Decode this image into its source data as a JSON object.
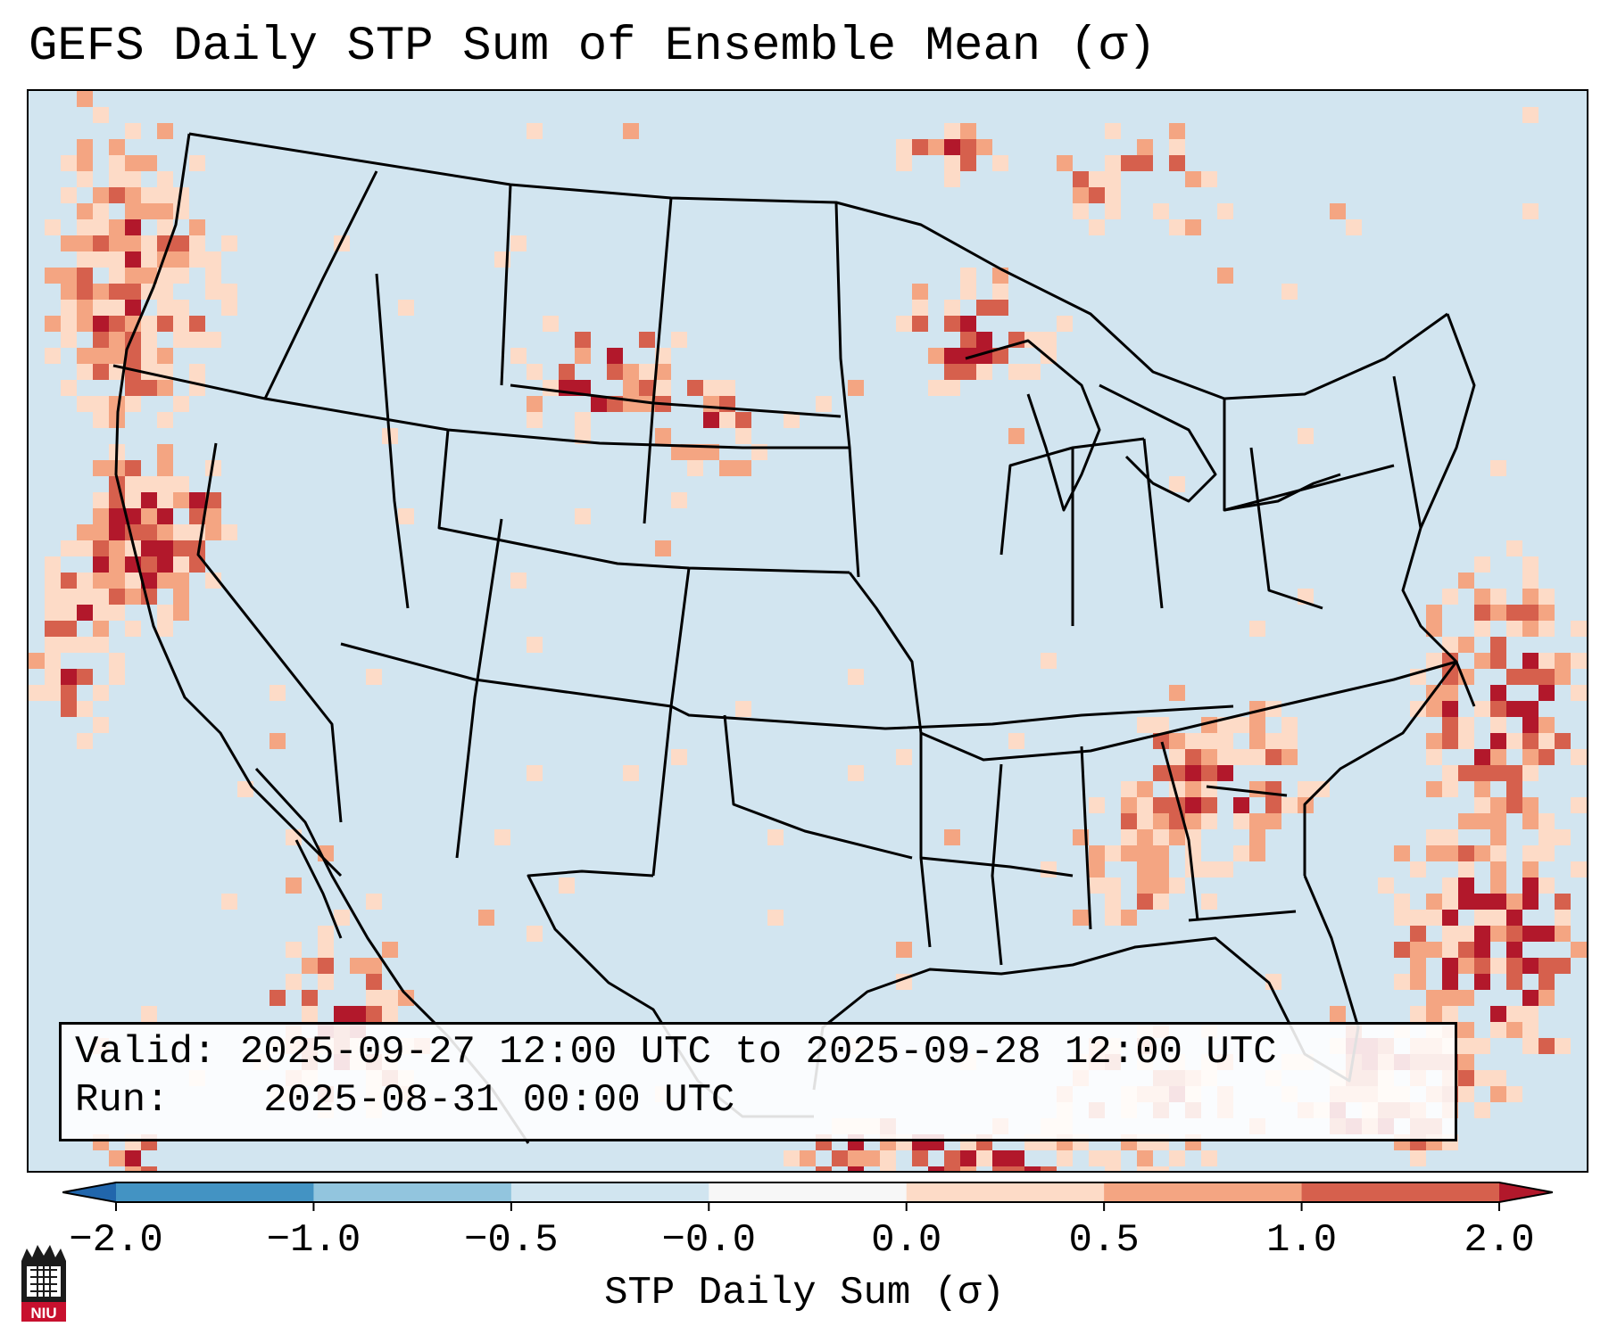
{
  "title": "GEFS Daily STP Sum of Ensemble Mean (σ)",
  "legend": {
    "valid_label": "Valid:",
    "valid_value": "2025-09-27 12:00 UTC to 2025-09-28 12:00 UTC",
    "run_label": "Run:",
    "run_value": "2025-08-31 00:00 UTC"
  },
  "colorbar": {
    "label": "STP Daily Sum (σ)",
    "ticks": [
      "−2.0",
      "−1.0",
      "−0.5",
      "−0.0",
      "0.0",
      "0.5",
      "1.0",
      "2.0"
    ],
    "bins": [
      {
        "from": "−2.0",
        "to": "−1.0",
        "color": "#4393c3"
      },
      {
        "from": "−1.0",
        "to": "−0.5",
        "color": "#92c5de"
      },
      {
        "from": "−0.5",
        "to": "−0.0",
        "color": "#d1e5f0"
      },
      {
        "from": "−0.0",
        "to": "0.0",
        "color": "#f7f7f7"
      },
      {
        "from": "0.0",
        "to": "0.5",
        "color": "#fddbc7"
      },
      {
        "from": "0.5",
        "to": "1.0",
        "color": "#f4a582"
      },
      {
        "from": "1.0",
        "to": "2.0",
        "color": "#d6604d"
      }
    ],
    "under_color": "#2166ac",
    "over_color": "#b2182b"
  },
  "logo": {
    "text": "NIU",
    "color": "#c8102e"
  },
  "map": {
    "background_color": "#d1e5f0",
    "outline_color": "#000000"
  }
}
